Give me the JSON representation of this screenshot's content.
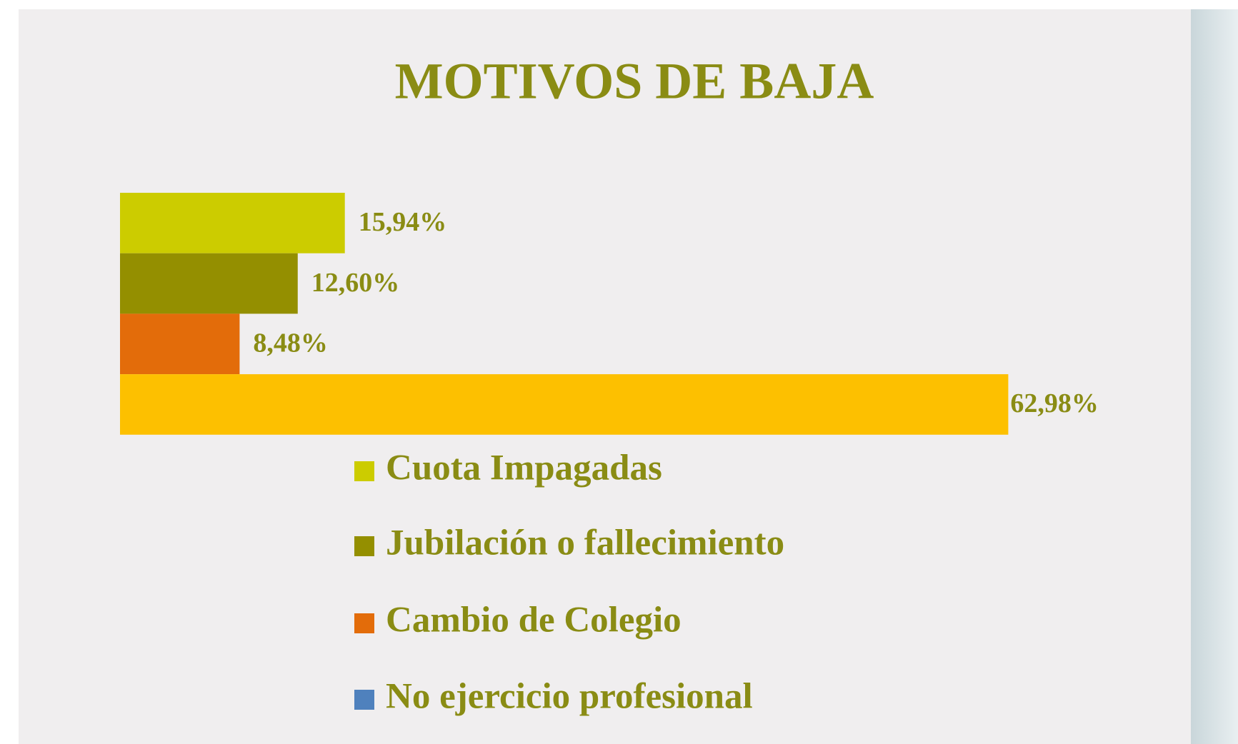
{
  "chart_data": {
    "type": "bar",
    "orientation": "horizontal",
    "title": "MOTIVOS DE BAJA",
    "xlim": [
      0,
      70
    ],
    "series": [
      {
        "name": "Cuota Impagadas",
        "color": "#cccc00",
        "values": [
          15.94
        ],
        "value_labels": [
          "15,94%"
        ]
      },
      {
        "name": "Jubilación o fallecimiento",
        "color": "#948f00",
        "values": [
          12.6
        ],
        "value_labels": [
          "12,60%"
        ]
      },
      {
        "name": "Cambio de Colegio",
        "color": "#e36c0a",
        "values": [
          8.48
        ],
        "value_labels": [
          "8,48%"
        ]
      },
      {
        "name": "No ejercicio profesional",
        "color": "#fdc000",
        "legend_color": "#4f81bd",
        "values": [
          62.98
        ],
        "value_labels": [
          "62,98%"
        ]
      }
    ]
  }
}
